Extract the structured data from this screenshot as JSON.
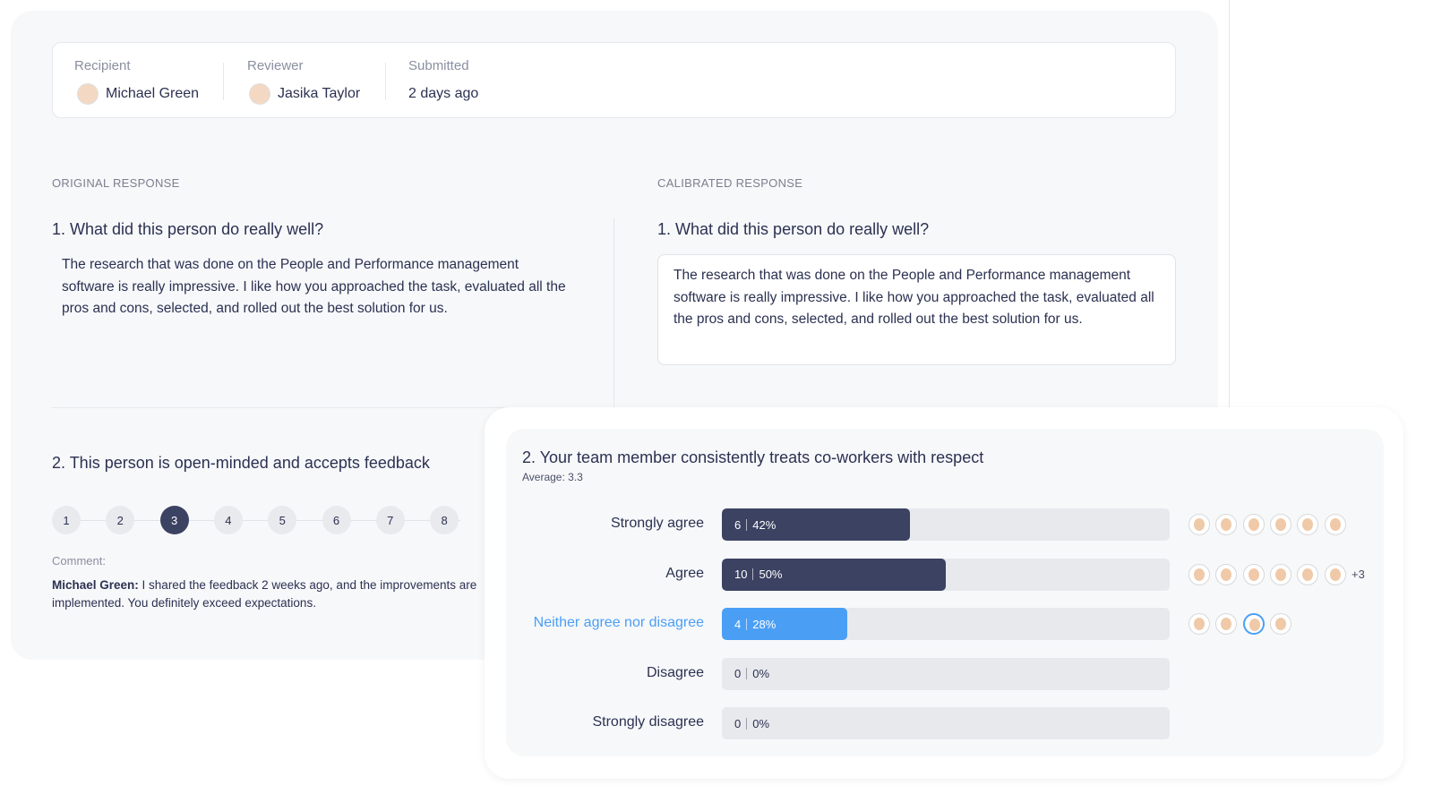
{
  "meta": {
    "recipient": {
      "label": "Recipient",
      "name": "Michael Green"
    },
    "reviewer": {
      "label": "Reviewer",
      "name": "Jasika Taylor"
    },
    "submitted": {
      "label": "Submitted",
      "value": "2 days ago"
    }
  },
  "original": {
    "heading": "ORIGINAL RESPONSE",
    "question1": {
      "title": "1. What did this person do really well?",
      "answer": "The research that was done on the People and Performance management software is really impressive. I like how you approached the task, evaluated all the pros and cons, selected, and rolled out the best solution for us."
    },
    "question2": {
      "title": "2. This person is open-minded and accepts feedback",
      "scale": [
        1,
        2,
        3,
        4,
        5,
        6,
        7,
        8
      ],
      "selected": 3,
      "comment_label": "Comment:",
      "comment_author": "Michael Green:",
      "comment_text": "I shared the feedback 2 weeks ago, and the improvements are implemented. You definitely exceed expectations."
    }
  },
  "calibrated": {
    "heading": "CALIBRATED RESPONSE",
    "question1": {
      "title": "1. What did this person do really well?",
      "answer": "The research that was done on the People and Performance management software is really impressive. I like how you approached the task, evaluated all the pros and cons, selected, and rolled out the best solution for us."
    }
  },
  "summary": {
    "title": "2. Your team member consistently treats co-workers with respect",
    "average_label": "Average:",
    "average": 3.3,
    "rows": [
      {
        "label": "Strongly agree",
        "count": 6,
        "percent": 42,
        "percent_label": "42%",
        "color": "#3b4262"
      },
      {
        "label": "Agree",
        "count": 10,
        "percent": 50,
        "percent_label": "50%",
        "color": "#3b4262",
        "more": "+3"
      },
      {
        "label": "Neither agree nor disagree",
        "count": 4,
        "percent": 28,
        "percent_label": "28%",
        "color": "#4a9ff5",
        "highlight": true
      },
      {
        "label": "Disagree",
        "count": 0,
        "percent": 0,
        "percent_label": "0%",
        "color": "#3b4262"
      },
      {
        "label": "Strongly disagree",
        "count": 0,
        "percent": 0,
        "percent_label": "0%",
        "color": "#3b4262"
      }
    ]
  }
}
